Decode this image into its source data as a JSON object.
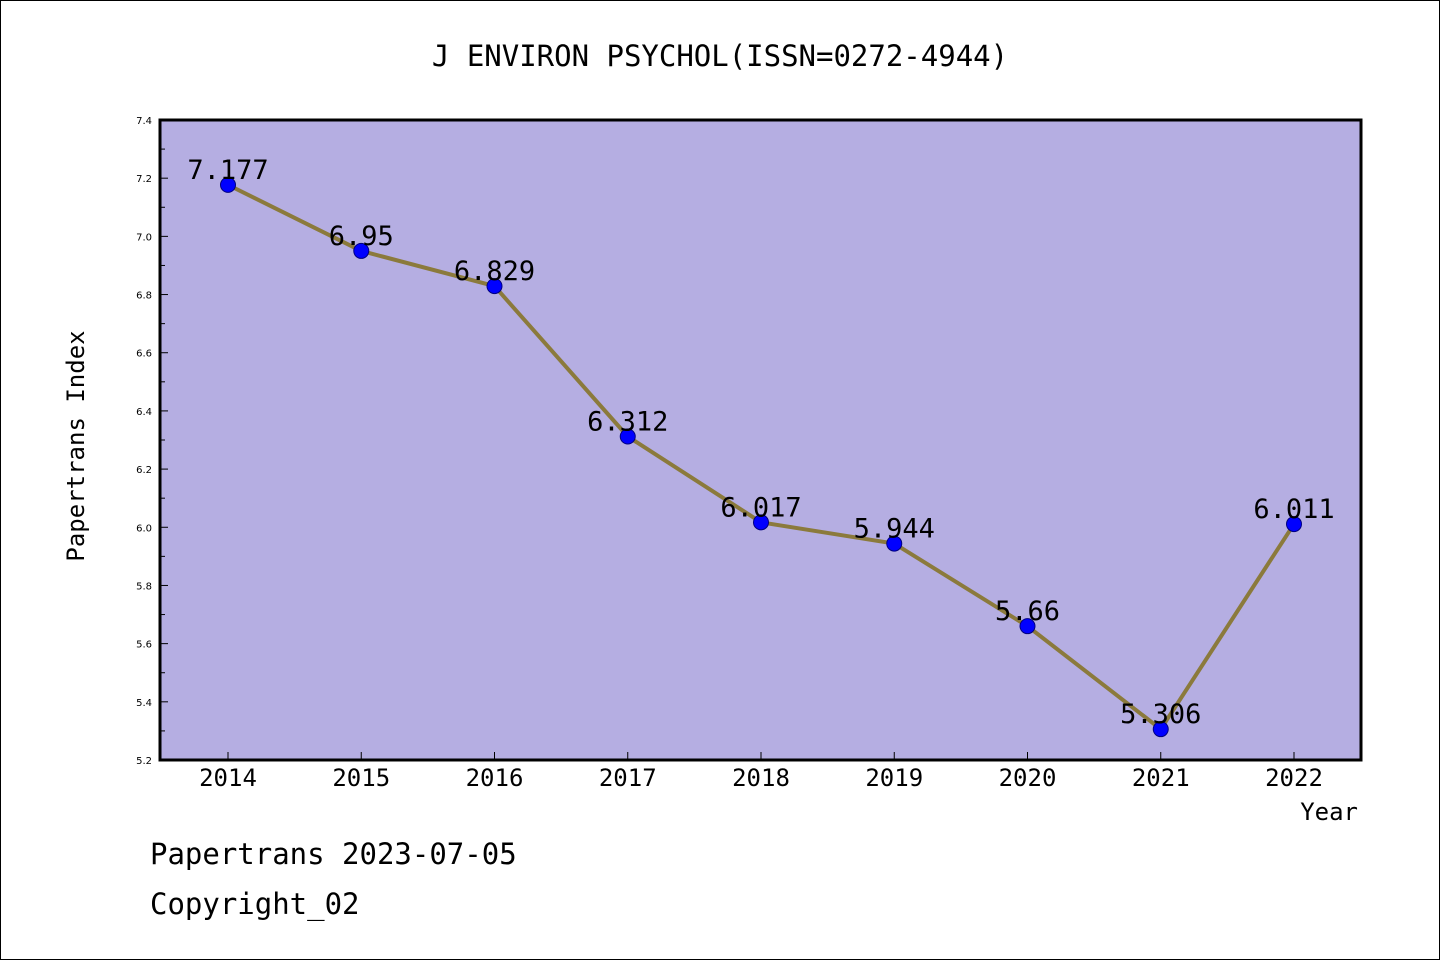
{
  "chart_data": {
    "type": "line",
    "title": "J ENVIRON PSYCHOL(ISSN=0272-4944)",
    "xlabel": "Year",
    "ylabel": "Papertrans Index",
    "categories": [
      "2014",
      "2015",
      "2016",
      "2017",
      "2018",
      "2019",
      "2020",
      "2021",
      "2022"
    ],
    "series": [
      {
        "values": [
          7.177,
          6.95,
          6.829,
          6.312,
          6.017,
          5.944,
          5.66,
          5.306,
          6.011
        ],
        "labels": [
          "7.177",
          "6.95",
          "6.829",
          "6.312",
          "6.017",
          "5.944",
          "5.66",
          "5.306",
          "6.011"
        ]
      }
    ],
    "ylim": [
      5.2,
      7.4
    ],
    "yticks": [
      "5.2",
      "5.4",
      "5.6",
      "5.8",
      "6.0",
      "6.2",
      "6.4",
      "6.6",
      "6.8",
      "7.0",
      "7.2",
      "7.4"
    ],
    "grid": false,
    "legend": "none",
    "colors": {
      "plot_background": "#b5aee2",
      "line": "#8b7a3c",
      "marker": "#0000ff",
      "marker_edge": "#000080"
    }
  },
  "footer": {
    "line1": "Papertrans 2023-07-05",
    "line2": "Copyright_02"
  }
}
